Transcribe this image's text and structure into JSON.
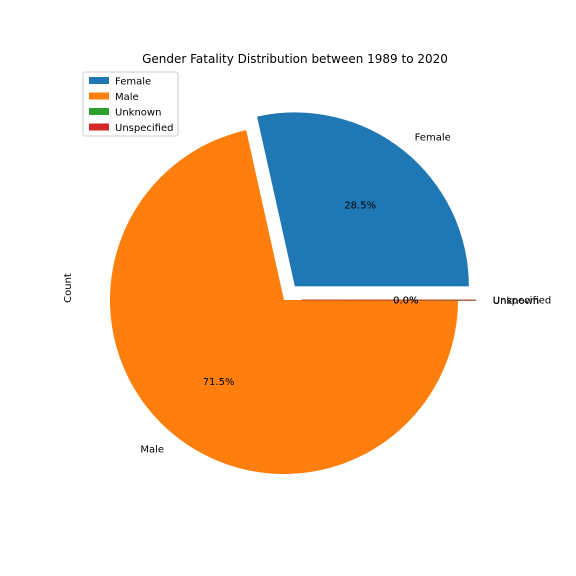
{
  "chart_data": {
    "type": "pie",
    "title": "Gender Fatality Distribution between 1989 to 2020",
    "ylabel": "Count",
    "legend_position": "top-left",
    "start_angle_degrees": 0,
    "direction": "counterclockwise",
    "slices": [
      {
        "label": "Female",
        "percent": 28.5,
        "pct_label": "28.5%",
        "color": "#1f77b4",
        "explode": 0.1
      },
      {
        "label": "Male",
        "percent": 71.5,
        "pct_label": "71.5%",
        "color": "#ff7f0e",
        "explode": 0
      },
      {
        "label": "Unknown",
        "percent": 0.03,
        "pct_label": "0.0%",
        "color": "#2ca02c",
        "explode": 0.1
      },
      {
        "label": "Unspecified",
        "percent": 0.01,
        "pct_label": "0.0%",
        "color": "#d62728",
        "explode": 0.1
      }
    ],
    "legend": [
      "Female",
      "Male",
      "Unknown",
      "Unspecified"
    ]
  }
}
